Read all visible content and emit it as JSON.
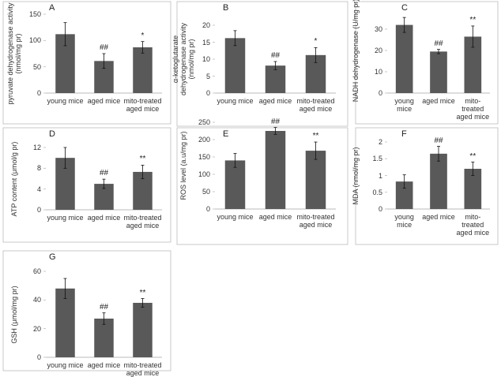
{
  "chart_data": [
    {
      "type": "bar",
      "label": "A",
      "ylabel": "pyruvate dehydrogenase activity (nmol/mg pr)",
      "categories": [
        "young mice",
        "aged mice",
        "mito-treated aged mice"
      ],
      "values": [
        112,
        61,
        87
      ],
      "errors": [
        22,
        14,
        11
      ],
      "annotations": [
        null,
        "##",
        "*"
      ],
      "ylim": [
        0,
        150
      ],
      "yticks": [
        0,
        50,
        100,
        150
      ],
      "color": "#595959"
    },
    {
      "type": "bar",
      "label": "B",
      "ylabel": "α-ketoglutarate dehydrogenase activity (nmol/mg pr)",
      "categories": [
        "young mice",
        "aged mice",
        "mito-treated aged mice"
      ],
      "values": [
        16.2,
        8.1,
        11.2
      ],
      "errors": [
        2.2,
        1.2,
        2.2
      ],
      "annotations": [
        null,
        "##",
        "*"
      ],
      "ylim": [
        0,
        20
      ],
      "yticks": [
        0,
        5,
        10,
        15,
        20
      ],
      "color": "#595959"
    },
    {
      "type": "bar",
      "label": "C",
      "ylabel": "NADH dehydrogenase (U/mg pr)",
      "categories": [
        "young mice",
        "aged mice",
        "mito-treated aged mice"
      ],
      "values": [
        32,
        19.5,
        26.5
      ],
      "errors": [
        3.5,
        1,
        5
      ],
      "annotations": [
        null,
        "##",
        "**"
      ],
      "ylim": [
        0,
        40
      ],
      "yticks": [
        0,
        10,
        20,
        30
      ],
      "color": "#595959"
    },
    {
      "type": "bar",
      "label": "D",
      "ylabel": "ATP content (μmol/g pr)",
      "categories": [
        "young mice",
        "aged mice",
        "mito-treated aged mice"
      ],
      "values": [
        10,
        5,
        7.3
      ],
      "errors": [
        2,
        0.9,
        1.3
      ],
      "annotations": [
        null,
        "##",
        "**"
      ],
      "ylim": [
        0,
        12
      ],
      "yticks": [
        0,
        4,
        8,
        12
      ],
      "color": "#595959"
    },
    {
      "type": "bar",
      "label": "E",
      "ylabel": "ROS level (a.u/mg pr)",
      "categories": [
        "young mice",
        "aged mice",
        "mito-treated aged mice"
      ],
      "values": [
        140,
        225,
        168
      ],
      "errors": [
        20,
        10,
        25
      ],
      "annotations": [
        null,
        "##",
        "**"
      ],
      "ylim": [
        0,
        250
      ],
      "yticks": [
        0,
        50,
        100,
        150,
        200,
        250
      ],
      "color": "#595959"
    },
    {
      "type": "bar",
      "label": "F",
      "ylabel": "MDA (nmol/mg pr)",
      "categories": [
        "young mice",
        "aged mice",
        "mito-treated aged mice"
      ],
      "values": [
        0.82,
        1.65,
        1.2
      ],
      "errors": [
        0.2,
        0.22,
        0.2
      ],
      "annotations": [
        null,
        "##",
        "**"
      ],
      "ylim": [
        0,
        2
      ],
      "yticks": [
        0,
        0.5,
        1,
        1.5,
        2
      ],
      "color": "#595959"
    },
    {
      "type": "bar",
      "label": "G",
      "ylabel": "GSH (μmol/mg pr)",
      "categories": [
        "young mice",
        "aged mice",
        "mito-treated aged mice"
      ],
      "values": [
        48,
        27,
        38
      ],
      "errors": [
        7,
        4,
        3
      ],
      "annotations": [
        null,
        "##",
        "**"
      ],
      "ylim": [
        0,
        60
      ],
      "yticks": [
        0,
        20,
        40,
        60
      ],
      "color": "#595959"
    }
  ]
}
